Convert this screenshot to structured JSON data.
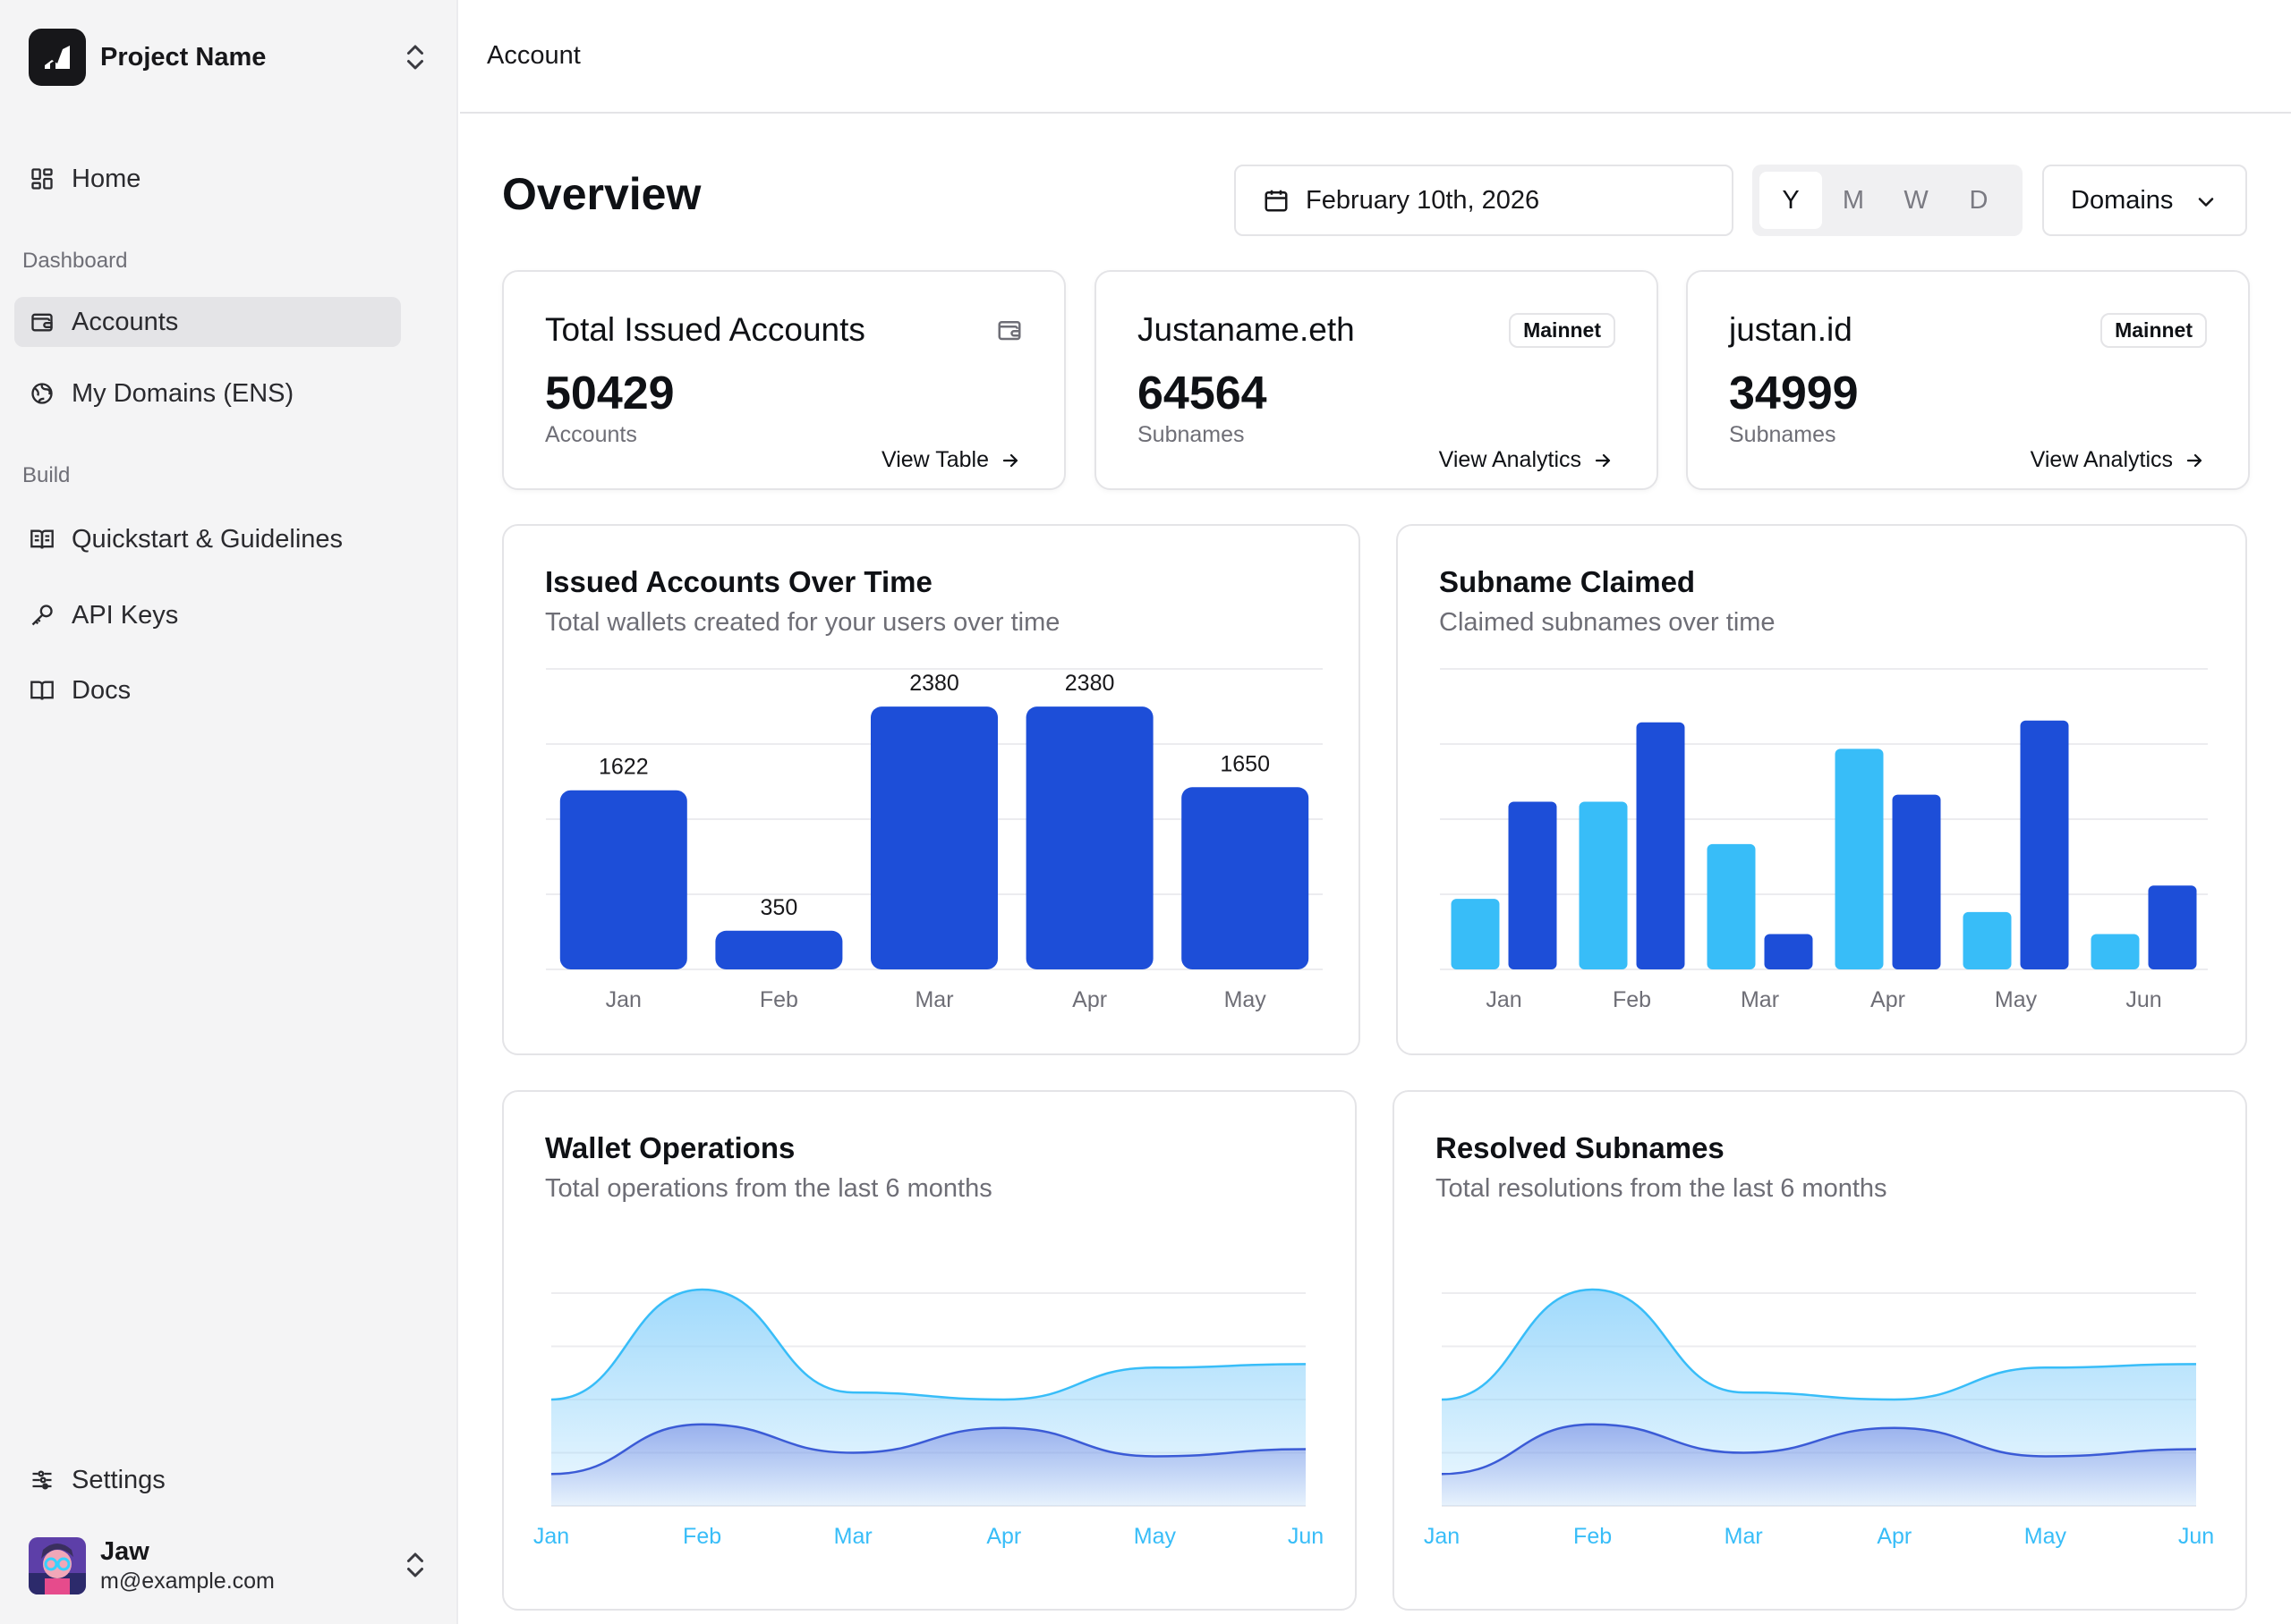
{
  "sidebar": {
    "project_name": "Project Name",
    "home": "Home",
    "section_dashboard": "Dashboard",
    "accounts": "Accounts",
    "my_domains": "My Domains (ENS)",
    "section_build": "Build",
    "quickstart": "Quickstart & Guidelines",
    "api_keys": "API Keys",
    "docs": "Docs",
    "settings": "Settings",
    "user": {
      "name": "Jaw",
      "email": "m@example.com"
    }
  },
  "topbar": {
    "breadcrumb": "Account"
  },
  "header": {
    "title": "Overview",
    "date": "February 10th, 2026",
    "period_options": [
      "Y",
      "M",
      "W",
      "D"
    ],
    "period_selected": "Y",
    "domains_label": "Domains"
  },
  "stats": [
    {
      "title": "Total Issued Accounts",
      "value": "50429",
      "unit": "Accounts",
      "link": "View Table",
      "badge": ""
    },
    {
      "title": "Justaname.eth",
      "value": "64564",
      "unit": "Subnames",
      "link": "View Analytics",
      "badge": "Mainnet"
    },
    {
      "title": "justan.id",
      "value": "34999",
      "unit": "Subnames",
      "link": "View Analytics",
      "badge": "Mainnet"
    }
  ],
  "colors": {
    "dark_blue": "#1d4ed8",
    "light_blue": "#38bdf8",
    "area_light": "#8fd3fb",
    "area_dark": "#6c7fe0"
  },
  "cards": {
    "issued": {
      "title": "Issued Accounts Over Time",
      "subtitle": "Total wallets created for your users over time"
    },
    "claimed": {
      "title": "Subname Claimed",
      "subtitle": "Claimed subnames over time"
    },
    "wallet_ops": {
      "title": "Wallet Operations",
      "subtitle": "Total operations from the last 6 months"
    },
    "resolved": {
      "title": "Resolved Subnames",
      "subtitle": "Total resolutions from the last 6 months"
    }
  },
  "chart_data": [
    {
      "type": "bar",
      "title": "Issued Accounts Over Time",
      "categories": [
        "Jan",
        "Feb",
        "Mar",
        "Apr",
        "May"
      ],
      "values": [
        1622,
        350,
        2380,
        2380,
        1650
      ],
      "ylim": [
        0,
        2600
      ],
      "grid": true
    },
    {
      "type": "bar",
      "title": "Subname Claimed",
      "categories": [
        "Jan",
        "Feb",
        "Mar",
        "Apr",
        "May",
        "Jun"
      ],
      "series": [
        {
          "values": [
            80,
            190,
            142,
            250,
            65,
            40
          ]
        },
        {
          "values": [
            190,
            280,
            40,
            198,
            282,
            95
          ]
        }
      ],
      "ylim": [
        0,
        300
      ],
      "grid": true
    },
    {
      "type": "area",
      "title": "Wallet Operations",
      "categories": [
        "Jan",
        "Feb",
        "Mar",
        "Apr",
        "May",
        "Jun"
      ],
      "series": [
        {
          "values": [
            150,
            305,
            160,
            150,
            195,
            200
          ]
        },
        {
          "values": [
            45,
            115,
            75,
            110,
            70,
            80
          ]
        }
      ],
      "ylim": [
        0,
        300
      ],
      "grid": true
    },
    {
      "type": "area",
      "title": "Resolved Subnames",
      "categories": [
        "Jan",
        "Feb",
        "Mar",
        "Apr",
        "May",
        "Jun"
      ],
      "series": [
        {
          "values": [
            150,
            305,
            160,
            150,
            195,
            200
          ]
        },
        {
          "values": [
            45,
            115,
            75,
            110,
            70,
            80
          ]
        }
      ],
      "ylim": [
        0,
        300
      ],
      "grid": true
    }
  ]
}
